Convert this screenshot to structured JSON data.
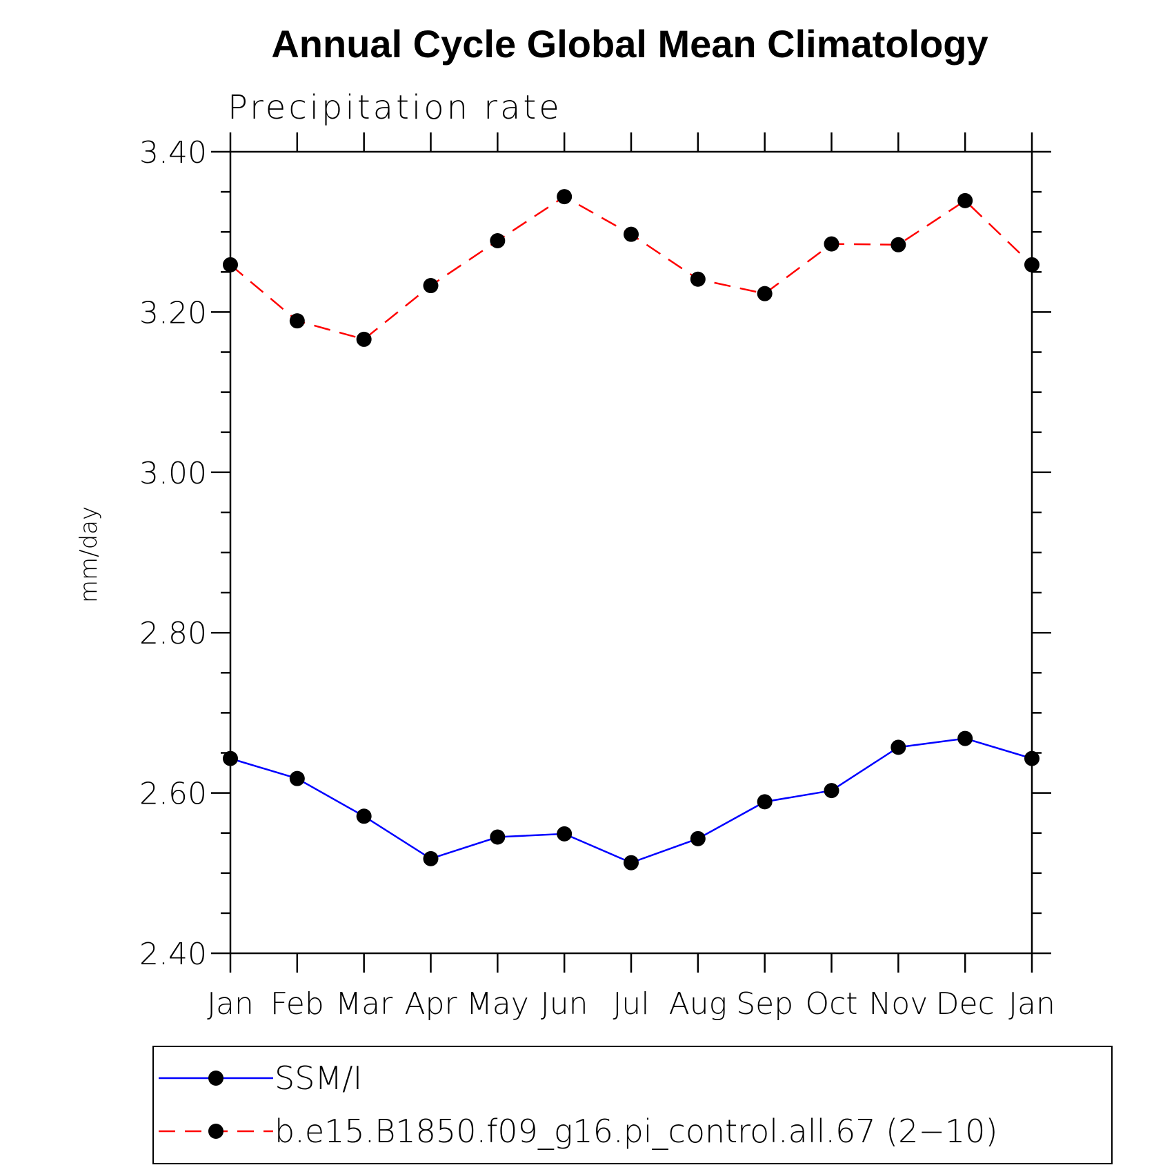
{
  "chart_data": {
    "type": "line",
    "title": "Annual Cycle Global Mean Climatology",
    "subtitle": "Precipitation rate",
    "xlabel": "",
    "ylabel": "mm/day",
    "categories": [
      "Jan",
      "Feb",
      "Mar",
      "Apr",
      "May",
      "Jun",
      "Jul",
      "Aug",
      "Sep",
      "Oct",
      "Nov",
      "Dec",
      "Jan"
    ],
    "ylim": [
      2.4,
      3.4
    ],
    "yticks": [
      2.4,
      2.6,
      2.8,
      3.0,
      3.2,
      3.4
    ],
    "ytick_labels": [
      "2.40",
      "2.60",
      "2.80",
      "3.00",
      "3.20",
      "3.40"
    ],
    "grid": false,
    "legend_position": "bottom",
    "series": [
      {
        "name": "SSM/I",
        "color": "#0000ff",
        "line_style": "solid",
        "marker": "filled-circle",
        "values": [
          2.643,
          2.618,
          2.571,
          2.518,
          2.545,
          2.549,
          2.513,
          2.543,
          2.589,
          2.603,
          2.657,
          2.668,
          2.643
        ]
      },
      {
        "name": "b.e15.B1850.f09_g16.pi_control.all.67 (2−10)",
        "color": "#ff0000",
        "line_style": "dashed",
        "marker": "filled-circle",
        "values": [
          3.259,
          3.189,
          3.166,
          3.233,
          3.289,
          3.344,
          3.297,
          3.241,
          3.223,
          3.285,
          3.284,
          3.339,
          3.259
        ]
      }
    ]
  }
}
